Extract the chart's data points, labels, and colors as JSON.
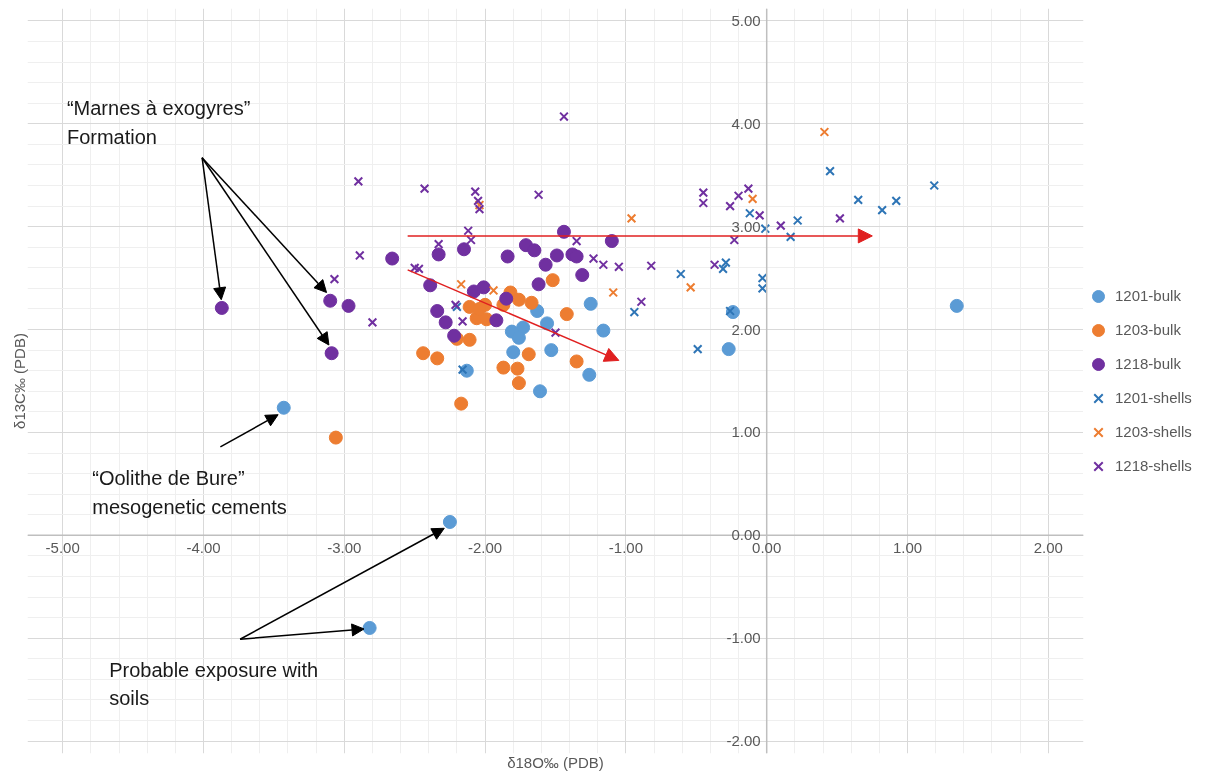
{
  "chart_data": {
    "type": "scatter",
    "xlabel": "δ18O‰ (PDB)",
    "ylabel": "δ13C‰ (PDB)",
    "xlim": [
      -5,
      2
    ],
    "ylim": [
      -2,
      5
    ],
    "xticks": [
      {
        "value": -5,
        "label": "-5.00"
      },
      {
        "value": -4,
        "label": "-4.00"
      },
      {
        "value": -3,
        "label": "-3.00"
      },
      {
        "value": -2,
        "label": "-2.00"
      },
      {
        "value": -1,
        "label": "-1.00"
      },
      {
        "value": 0,
        "label": "0.00"
      },
      {
        "value": 1,
        "label": "1.00"
      },
      {
        "value": 2,
        "label": "2.00"
      }
    ],
    "yticks": [
      {
        "value": -2,
        "label": "-2.00"
      },
      {
        "value": -1,
        "label": "-1.00"
      },
      {
        "value": 0,
        "label": "0.00"
      },
      {
        "value": 1,
        "label": "1.00"
      },
      {
        "value": 2,
        "label": "2.00"
      },
      {
        "value": 3,
        "label": "3.00"
      },
      {
        "value": 4,
        "label": "4.00"
      },
      {
        "value": 5,
        "label": "5.00"
      }
    ],
    "grid": true,
    "legend": "right",
    "series": [
      {
        "name": "1201-bulk",
        "color": "#5b9bd5",
        "marker": "circle",
        "x": [
          1.35,
          -2.25,
          -2.82,
          -3.43,
          -2.13,
          -1.25,
          -1.63,
          -1.56,
          -1.73,
          -1.81,
          -1.76,
          -1.53,
          -1.8,
          -1.16,
          -1.26,
          -1.61,
          -0.24,
          -0.27
        ],
        "values": [
          2.23,
          0.13,
          -0.9,
          1.24,
          1.6,
          2.25,
          2.18,
          2.06,
          2.02,
          1.98,
          1.92,
          1.8,
          1.78,
          1.99,
          1.56,
          1.4,
          2.17,
          1.81
        ]
      },
      {
        "name": "1203-bulk",
        "color": "#ed7d31",
        "marker": "circle",
        "x": [
          -2.44,
          -2.34,
          -2.17,
          -3.06,
          -2.2,
          -2.11,
          -2.11,
          -2.06,
          -1.99,
          -2.0,
          -1.82,
          -1.76,
          -1.87,
          -1.67,
          -1.42,
          -1.69,
          -1.87,
          -1.77,
          -1.76,
          -1.35,
          -1.52,
          -2.04
        ],
        "values": [
          1.77,
          1.72,
          1.28,
          0.95,
          1.91,
          1.9,
          2.22,
          2.11,
          2.1,
          2.24,
          2.36,
          2.29,
          2.24,
          2.26,
          2.15,
          1.76,
          1.63,
          1.62,
          1.48,
          1.69,
          2.48,
          2.2
        ]
      },
      {
        "name": "1218-bulk",
        "color": "#7030a0",
        "marker": "circle",
        "x": [
          -3.87,
          -3.1,
          -2.97,
          -3.09,
          -2.66,
          -2.33,
          -2.15,
          -2.39,
          -2.34,
          -2.28,
          -2.22,
          -2.08,
          -2.01,
          -1.84,
          -1.71,
          -1.65,
          -1.44,
          -1.49,
          -1.38,
          -1.35,
          -1.1,
          -1.57,
          -1.62,
          -1.31,
          -1.85,
          -1.92
        ],
        "values": [
          2.21,
          2.28,
          2.23,
          1.77,
          2.69,
          2.73,
          2.78,
          2.43,
          2.18,
          2.07,
          1.94,
          2.37,
          2.41,
          2.71,
          2.82,
          2.77,
          2.95,
          2.72,
          2.73,
          2.71,
          2.86,
          2.63,
          2.44,
          2.53,
          2.3,
          2.09
        ]
      },
      {
        "name": "1201-shells",
        "color": "#2e75b6",
        "marker": "cross",
        "x": [
          0.45,
          0.65,
          0.82,
          0.92,
          1.19,
          -0.12,
          -0.01,
          0.22,
          0.17,
          -0.29,
          -0.31,
          -0.61,
          -0.03,
          -0.03,
          -0.94,
          -0.26,
          -0.49,
          -2.2,
          -2.16
        ],
        "values": [
          3.54,
          3.26,
          3.16,
          3.25,
          3.4,
          3.13,
          2.98,
          3.06,
          2.9,
          2.65,
          2.59,
          2.54,
          2.5,
          2.4,
          2.17,
          2.18,
          1.81,
          2.22,
          1.61
        ]
      },
      {
        "name": "1203-shells",
        "color": "#ed7d31",
        "marker": "cross",
        "x": [
          0.41,
          -0.1,
          -0.96,
          -1.09,
          -0.54,
          -2.04,
          -2.17,
          -1.94,
          -1.51
        ],
        "values": [
          3.92,
          3.27,
          3.08,
          2.36,
          2.41,
          3.21,
          2.44,
          2.38,
          2.48
        ]
      },
      {
        "name": "1218-shells",
        "color": "#7030a0",
        "marker": "cross",
        "x": [
          -2.9,
          -2.43,
          -2.07,
          -2.05,
          -2.04,
          -2.12,
          -2.1,
          -2.33,
          -2.89,
          -3.07,
          -2.5,
          -2.47,
          -2.8,
          -2.16,
          -2.21,
          -1.44,
          -1.62,
          -1.35,
          -1.23,
          -1.16,
          -1.05,
          -0.82,
          -0.89,
          -1.5,
          -0.45,
          -0.45,
          -0.26,
          -0.2,
          -0.13,
          -0.05,
          -0.23,
          -0.37,
          0.1,
          0.52
        ],
        "values": [
          3.44,
          3.37,
          3.34,
          3.25,
          3.17,
          2.96,
          2.87,
          2.83,
          2.72,
          2.49,
          2.6,
          2.59,
          2.07,
          2.08,
          2.24,
          4.07,
          3.31,
          2.86,
          2.69,
          2.63,
          2.61,
          2.62,
          2.27,
          1.97,
          3.33,
          3.23,
          3.2,
          3.3,
          3.37,
          3.11,
          2.87,
          2.63,
          3.01,
          3.08
        ]
      }
    ],
    "annotations": [
      {
        "text": "“Marnes à exogyres”\nFormation",
        "x": -3.87,
        "y": 2.21
      },
      {
        "text": "“Oolithe de Bure”\nmesogenetic cements",
        "x": -3.43,
        "y": 1.24
      },
      {
        "text": "Probable exposure with\nsoils",
        "x": -2.82,
        "y": -0.9
      }
    ]
  }
}
